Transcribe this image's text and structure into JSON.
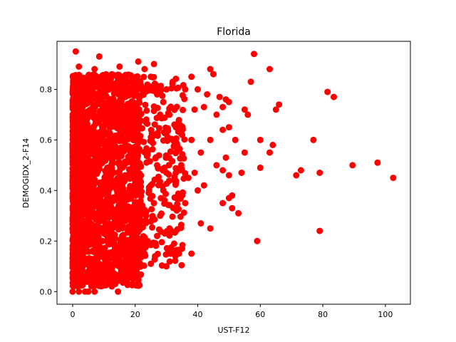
{
  "chart_data": {
    "type": "scatter",
    "title": "Florida",
    "xlabel": "UST-F12",
    "ylabel": "DEMOGIDX_2-F14",
    "xlim": [
      -5,
      108
    ],
    "ylim": [
      -0.05,
      0.99
    ],
    "xticks": [
      0,
      20,
      40,
      60,
      80,
      100
    ],
    "yticks": [
      0.0,
      0.2,
      0.4,
      0.6,
      0.8
    ],
    "xtick_labels": [
      "0",
      "20",
      "40",
      "60",
      "80",
      "100"
    ],
    "ytick_labels": [
      "0.0",
      "0.2",
      "0.4",
      "0.6",
      "0.8"
    ],
    "grid": false,
    "marker_color": "#ff0000",
    "dense_region": {
      "x_range": [
        0,
        22
      ],
      "y_range": [
        0.02,
        0.86
      ],
      "description_points": 0
    },
    "points": [
      [
        1,
        0.95
      ],
      [
        8.5,
        0.93
      ],
      [
        2,
        0.89
      ],
      [
        7,
        0.88
      ],
      [
        15,
        0.89
      ],
      [
        21,
        0.91
      ],
      [
        23,
        0.88
      ],
      [
        26,
        0.9
      ],
      [
        58,
        0.94
      ],
      [
        63,
        0.88
      ],
      [
        44,
        0.88
      ],
      [
        45,
        0.86
      ],
      [
        57,
        0.83
      ],
      [
        38,
        0.85
      ],
      [
        36,
        0.8
      ],
      [
        40,
        0.8
      ],
      [
        47,
        0.77
      ],
      [
        49,
        0.76
      ],
      [
        48,
        0.73
      ],
      [
        50,
        0.75
      ],
      [
        46,
        0.7
      ],
      [
        42,
        0.73
      ],
      [
        43,
        0.78
      ],
      [
        39,
        0.72
      ],
      [
        81.5,
        0.79
      ],
      [
        83.5,
        0.77
      ],
      [
        66,
        0.74
      ],
      [
        65,
        0.72
      ],
      [
        55,
        0.72
      ],
      [
        56,
        0.7
      ],
      [
        50,
        0.65
      ],
      [
        48,
        0.64
      ],
      [
        77,
        0.6
      ],
      [
        64,
        0.58
      ],
      [
        63,
        0.55
      ],
      [
        60,
        0.6
      ],
      [
        55,
        0.55
      ],
      [
        52,
        0.6
      ],
      [
        49,
        0.53
      ],
      [
        50,
        0.46
      ],
      [
        46,
        0.5
      ],
      [
        48,
        0.48
      ],
      [
        60,
        0.49
      ],
      [
        54,
        0.47
      ],
      [
        71.5,
        0.46
      ],
      [
        73,
        0.48
      ],
      [
        79,
        0.47
      ],
      [
        89.5,
        0.5
      ],
      [
        97.5,
        0.51
      ],
      [
        102.5,
        0.45
      ],
      [
        51,
        0.38
      ],
      [
        50,
        0.37
      ],
      [
        48,
        0.35
      ],
      [
        51,
        0.33
      ],
      [
        53,
        0.31
      ],
      [
        44,
        0.25
      ],
      [
        41,
        0.27
      ],
      [
        79,
        0.24
      ],
      [
        59,
        0.2
      ],
      [
        38,
        0.15
      ],
      [
        34,
        0.15
      ],
      [
        35,
        0.17
      ],
      [
        30,
        0.1
      ],
      [
        25,
        0.11
      ],
      [
        14.5,
        0.0
      ],
      [
        0,
        0.0
      ],
      [
        2,
        0.0
      ],
      [
        4,
        0.0
      ],
      [
        5,
        0.0
      ],
      [
        7,
        0.0
      ],
      [
        8,
        0.05
      ],
      [
        0.5,
        0.05
      ],
      [
        33,
        0.33
      ],
      [
        36,
        0.35
      ],
      [
        40,
        0.4
      ],
      [
        42,
        0.42
      ],
      [
        37,
        0.45
      ],
      [
        39,
        0.47
      ],
      [
        41,
        0.55
      ],
      [
        44,
        0.6
      ],
      [
        38,
        0.6
      ],
      [
        35,
        0.62
      ],
      [
        33,
        0.65
      ],
      [
        31,
        0.7
      ],
      [
        29,
        0.75
      ],
      [
        27,
        0.78
      ],
      [
        30,
        0.8
      ],
      [
        32,
        0.83
      ],
      [
        25,
        0.85
      ],
      [
        28,
        0.7
      ],
      [
        26,
        0.62
      ],
      [
        24,
        0.55
      ],
      [
        27,
        0.5
      ],
      [
        30,
        0.47
      ],
      [
        33,
        0.43
      ],
      [
        29,
        0.4
      ],
      [
        26,
        0.35
      ],
      [
        28,
        0.3
      ],
      [
        31,
        0.25
      ],
      [
        27,
        0.22
      ],
      [
        24,
        0.2
      ],
      [
        23,
        0.15
      ],
      [
        22,
        0.28
      ],
      [
        25,
        0.42
      ]
    ]
  }
}
